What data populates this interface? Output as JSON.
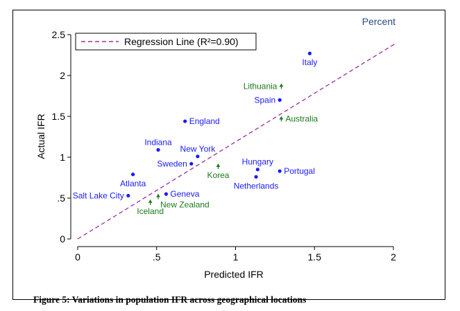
{
  "figure": {
    "caption": "Figure 5: Variations in population IFR across geographical locations"
  },
  "chart_data": {
    "type": "scatter",
    "xlabel": "Predicted IFR",
    "ylabel": "Actual IFR",
    "corner_note": "Percent",
    "xlim": [
      0,
      2
    ],
    "ylim": [
      0,
      2.5
    ],
    "x_ticks": [
      {
        "value": 0,
        "label": "0"
      },
      {
        "value": 0.5,
        "label": ".5"
      },
      {
        "value": 1,
        "label": "1"
      },
      {
        "value": 1.5,
        "label": "1.5"
      },
      {
        "value": 2,
        "label": "2"
      }
    ],
    "y_ticks": [
      {
        "value": 0,
        "label": "0"
      },
      {
        "value": 0.5,
        "label": ".5"
      },
      {
        "value": 1,
        "label": "1"
      },
      {
        "value": 1.5,
        "label": "1.5"
      },
      {
        "value": 2,
        "label": "2"
      },
      {
        "value": 2.5,
        "label": "2.5"
      }
    ],
    "colors": {
      "blue_series": "#1a1aff",
      "green_series": "#1a7a1a",
      "regression": "#9b2f9b",
      "axis": "#000000",
      "corner_note": "#2a4a7f"
    },
    "legend": {
      "label": "Regression Line (R²=0.90)",
      "placement": "top-left"
    },
    "regression": {
      "x0": 0,
      "y0": 0,
      "x1": 2.02,
      "y1": 2.4
    },
    "series": [
      {
        "name": "blue",
        "marker": "dot",
        "color": "#1a1aff",
        "points": [
          {
            "label": "Italy",
            "x": 1.47,
            "y": 2.27,
            "label_pos": "below"
          },
          {
            "label": "Spain",
            "x": 1.28,
            "y": 1.7,
            "label_pos": "left"
          },
          {
            "label": "England",
            "x": 0.68,
            "y": 1.44,
            "label_pos": "right"
          },
          {
            "label": "Indiana",
            "x": 0.51,
            "y": 1.09,
            "label_pos": "above"
          },
          {
            "label": "New York",
            "x": 0.76,
            "y": 1.01,
            "label_pos": "above"
          },
          {
            "label": "Sweden",
            "x": 0.72,
            "y": 0.92,
            "label_pos": "left"
          },
          {
            "label": "Atlanta",
            "x": 0.35,
            "y": 0.79,
            "label_pos": "below"
          },
          {
            "label": "Hungary",
            "x": 1.14,
            "y": 0.85,
            "label_pos": "above"
          },
          {
            "label": "Portugal",
            "x": 1.28,
            "y": 0.83,
            "label_pos": "right"
          },
          {
            "label": "Netherlands",
            "x": 1.13,
            "y": 0.76,
            "label_pos": "below"
          },
          {
            "label": "Geneva",
            "x": 0.56,
            "y": 0.55,
            "label_pos": "right"
          },
          {
            "label": "Salt Lake City",
            "x": 0.32,
            "y": 0.53,
            "label_pos": "left"
          }
        ]
      },
      {
        "name": "green",
        "marker": "triangle",
        "color": "#1a7a1a",
        "points": [
          {
            "label": "Lithuania",
            "x": 1.29,
            "y": 1.87,
            "label_pos": "left"
          },
          {
            "label": "Australia",
            "x": 1.29,
            "y": 1.47,
            "label_pos": "right"
          },
          {
            "label": "Korea",
            "x": 0.89,
            "y": 0.89,
            "label_pos": "below"
          },
          {
            "label": "New Zealand",
            "x": 0.51,
            "y": 0.52,
            "label_pos": "below-right"
          },
          {
            "label": "Iceland",
            "x": 0.46,
            "y": 0.45,
            "label_pos": "below"
          }
        ]
      }
    ]
  }
}
